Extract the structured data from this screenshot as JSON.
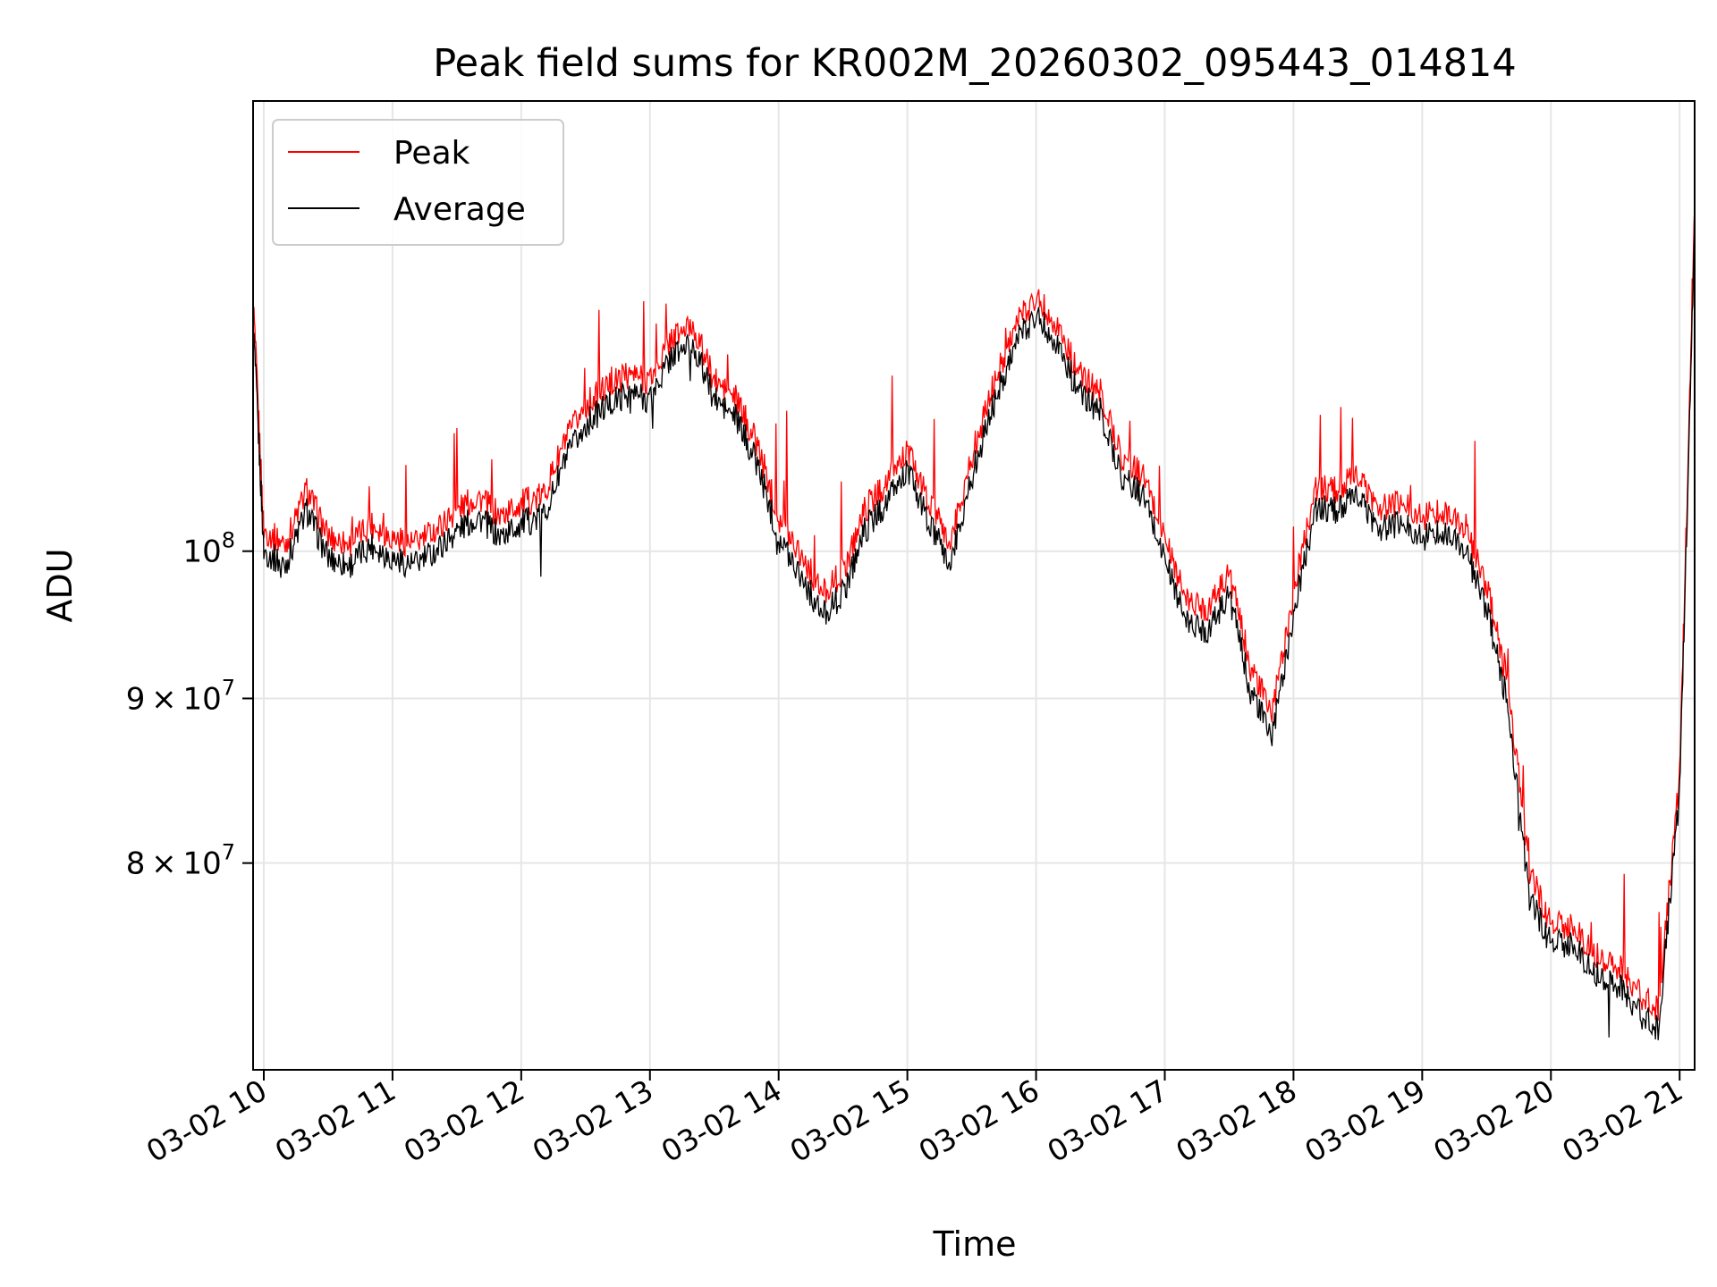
{
  "chart_data": {
    "type": "line",
    "title": "Peak field sums for KR002M_20260302_095443_014814",
    "xlabel": "Time",
    "ylabel": "ADU",
    "y_scale": "log",
    "grid": true,
    "legend_position": "upper-left",
    "xlim": [
      "03-02 09:55",
      "03-02 21:07"
    ],
    "ylim": [
      69000000,
      138000000
    ],
    "x_ticks": [
      "03-02 10",
      "03-02 11",
      "03-02 12",
      "03-02 13",
      "03-02 14",
      "03-02 15",
      "03-02 16",
      "03-02 17",
      "03-02 18",
      "03-02 19",
      "03-02 20",
      "03-02 21"
    ],
    "y_ticks": [
      {
        "value": 80000000,
        "base": "8",
        "exp": "7"
      },
      {
        "value": 90000000,
        "base": "9",
        "exp": "7"
      },
      {
        "value": 100000000,
        "base": "10",
        "exp": "8"
      }
    ],
    "x": [
      "03-02 09:55",
      "03-02 10:00",
      "03-02 10:10",
      "03-02 10:20",
      "03-02 10:30",
      "03-02 10:40",
      "03-02 10:50",
      "03-02 11:00",
      "03-02 11:10",
      "03-02 11:20",
      "03-02 11:30",
      "03-02 11:40",
      "03-02 11:50",
      "03-02 12:00",
      "03-02 12:10",
      "03-02 12:20",
      "03-02 12:30",
      "03-02 12:40",
      "03-02 12:50",
      "03-02 13:00",
      "03-02 13:10",
      "03-02 13:20",
      "03-02 13:30",
      "03-02 13:40",
      "03-02 13:50",
      "03-02 14:00",
      "03-02 14:10",
      "03-02 14:20",
      "03-02 14:30",
      "03-02 14:40",
      "03-02 14:50",
      "03-02 15:00",
      "03-02 15:10",
      "03-02 15:20",
      "03-02 15:30",
      "03-02 15:40",
      "03-02 15:50",
      "03-02 16:00",
      "03-02 16:10",
      "03-02 16:20",
      "03-02 16:30",
      "03-02 16:40",
      "03-02 16:50",
      "03-02 17:00",
      "03-02 17:10",
      "03-02 17:20",
      "03-02 17:30",
      "03-02 17:40",
      "03-02 17:50",
      "03-02 18:00",
      "03-02 18:10",
      "03-02 18:20",
      "03-02 18:30",
      "03-02 18:40",
      "03-02 18:50",
      "03-02 19:00",
      "03-02 19:10",
      "03-02 19:20",
      "03-02 19:30",
      "03-02 19:40",
      "03-02 19:50",
      "03-02 20:00",
      "03-02 20:10",
      "03-02 20:20",
      "03-02 20:30",
      "03-02 20:40",
      "03-02 20:50",
      "03-02 21:00",
      "03-02 21:07"
    ],
    "series": [
      {
        "name": "Peak",
        "color": "#ff0000",
        "values": [
          120000000,
          101500000,
          100500000,
          104500000,
          101000000,
          100500000,
          102000000,
          101000000,
          100500000,
          101500000,
          103000000,
          104000000,
          102500000,
          103500000,
          104000000,
          108000000,
          111000000,
          112500000,
          113500000,
          113000000,
          116500000,
          117500000,
          113000000,
          111500000,
          108000000,
          102500000,
          100000000,
          97000000,
          98500000,
          103000000,
          105000000,
          107500000,
          103500000,
          100500000,
          107000000,
          112500000,
          117500000,
          120000000,
          117500000,
          113500000,
          112000000,
          107000000,
          105500000,
          101000000,
          96500000,
          96000000,
          98500000,
          92000000,
          89000000,
          97000000,
          104500000,
          104500000,
          105500000,
          103000000,
          103500000,
          102500000,
          103000000,
          101500000,
          97500000,
          91000000,
          79500000,
          76500000,
          76500000,
          75000000,
          74500000,
          73000000,
          72000000,
          85000000,
          128000000
        ]
      },
      {
        "name": "Average",
        "color": "#000000",
        "values": [
          118000000,
          100000000,
          99000000,
          103000000,
          99500000,
          99000000,
          100500000,
          99500000,
          99000000,
          100000000,
          101500000,
          102500000,
          101000000,
          102000000,
          102500000,
          106500000,
          109500000,
          111000000,
          112000000,
          111500000,
          115000000,
          116000000,
          111500000,
          110000000,
          106500000,
          101000000,
          98500000,
          95500000,
          97000000,
          101500000,
          103500000,
          106000000,
          102000000,
          99000000,
          105500000,
          111000000,
          116000000,
          118500000,
          116000000,
          112000000,
          110500000,
          105500000,
          104000000,
          99500000,
          95000000,
          94500000,
          97000000,
          90500000,
          87500000,
          95500000,
          103000000,
          103000000,
          104000000,
          101500000,
          102000000,
          101000000,
          101500000,
          100000000,
          96000000,
          89500000,
          78000000,
          75500000,
          75500000,
          74000000,
          73500000,
          72000000,
          71000000,
          84000000,
          126000000
        ]
      }
    ]
  }
}
